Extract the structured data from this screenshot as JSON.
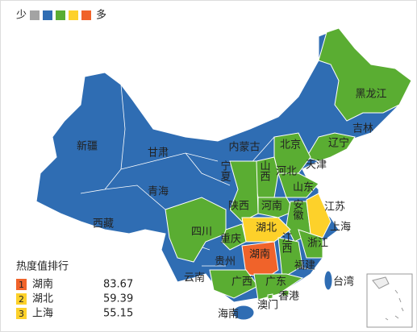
{
  "legend": {
    "low": "少",
    "high": "多",
    "colors": [
      "#a3a3a3",
      "#2f6db3",
      "#5aad32",
      "#fdd12a",
      "#f0632a"
    ]
  },
  "regions": [
    {
      "name": "新疆",
      "color": "#2f6db3"
    },
    {
      "name": "西藏",
      "color": "#2f6db3"
    },
    {
      "name": "青海",
      "color": "#2f6db3"
    },
    {
      "name": "甘肃",
      "color": "#2f6db3"
    },
    {
      "name": "内蒙古",
      "color": "#2f6db3"
    },
    {
      "name": "黑龙江",
      "color": "#5aad32"
    },
    {
      "name": "吉林",
      "color": "#2f6db3"
    },
    {
      "name": "辽宁",
      "color": "#5aad32"
    },
    {
      "name": "北京",
      "color": "#fdd12a"
    },
    {
      "name": "天津",
      "color": "#2f6db3"
    },
    {
      "name": "河北",
      "color": "#5aad32"
    },
    {
      "name": "宁夏",
      "color": "#2f6db3"
    },
    {
      "name": "山西",
      "color": "#5aad32"
    },
    {
      "name": "山东",
      "color": "#5aad32"
    },
    {
      "name": "陕西",
      "color": "#5aad32"
    },
    {
      "name": "河南",
      "color": "#5aad32"
    },
    {
      "name": "江苏",
      "color": "#2f6db3"
    },
    {
      "name": "安徽",
      "color": "#5aad32"
    },
    {
      "name": "湖北",
      "color": "#fdd12a"
    },
    {
      "name": "上海",
      "color": "#fdd12a"
    },
    {
      "name": "四川",
      "color": "#5aad32"
    },
    {
      "name": "重庆",
      "color": "#5aad32"
    },
    {
      "name": "江西",
      "color": "#5aad32"
    },
    {
      "name": "浙江",
      "color": "#5aad32"
    },
    {
      "name": "湖南",
      "color": "#f0632a"
    },
    {
      "name": "贵州",
      "color": "#2f6db3"
    },
    {
      "name": "福建",
      "color": "#2f6db3"
    },
    {
      "name": "云南",
      "color": "#2f6db3"
    },
    {
      "name": "广西",
      "color": "#5aad32"
    },
    {
      "name": "广东",
      "color": "#5aad32"
    },
    {
      "name": "台湾",
      "color": "#2f6db3"
    },
    {
      "name": "香港",
      "color": "#5aad32"
    },
    {
      "name": "澳门",
      "color": "#5aad32"
    },
    {
      "name": "海南",
      "color": "#2f6db3"
    }
  ],
  "ranking": {
    "title": "热度值排行",
    "rows": [
      {
        "rank": 1,
        "name": "湖南",
        "value": 83.67,
        "color": "#f0632a"
      },
      {
        "rank": 2,
        "name": "湖北",
        "value": 59.39,
        "color": "#fdd12a"
      },
      {
        "rank": 3,
        "name": "上海",
        "value": 55.15,
        "color": "#fdd12a"
      }
    ]
  }
}
